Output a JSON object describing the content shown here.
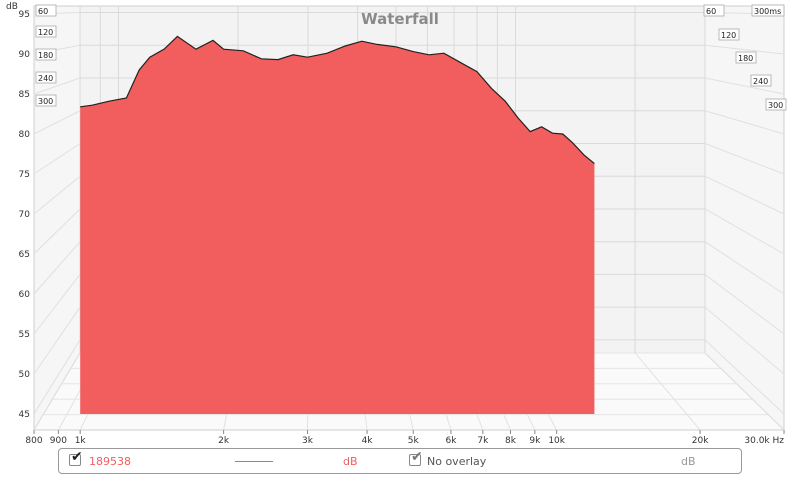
{
  "chart_data": {
    "type": "area",
    "title": "Waterfall",
    "ylabel": "dB",
    "xlabel": "Hz",
    "x_scale": "log",
    "xlim": [
      800,
      30000
    ],
    "ylim": [
      43,
      96
    ],
    "x_ticks": [
      {
        "value": 800,
        "label": "800"
      },
      {
        "value": 900,
        "label": "900"
      },
      {
        "value": 1000,
        "label": "1k"
      },
      {
        "value": 2000,
        "label": "2k"
      },
      {
        "value": 3000,
        "label": "3k"
      },
      {
        "value": 4000,
        "label": "4k"
      },
      {
        "value": 5000,
        "label": "5k"
      },
      {
        "value": 6000,
        "label": "6k"
      },
      {
        "value": 7000,
        "label": "7k"
      },
      {
        "value": 8000,
        "label": "8k"
      },
      {
        "value": 9000,
        "label": "9k"
      },
      {
        "value": 10000,
        "label": "10k"
      },
      {
        "value": 20000,
        "label": "20k"
      },
      {
        "value": 30000,
        "label": "30.0k Hz"
      }
    ],
    "y_ticks": [
      45,
      50,
      55,
      60,
      65,
      70,
      75,
      80,
      85,
      90,
      95
    ],
    "time_ticks_ms": [
      {
        "value": 60,
        "label": "60"
      },
      {
        "value": 120,
        "label": "120"
      },
      {
        "value": 180,
        "label": "180"
      },
      {
        "value": 240,
        "label": "240"
      },
      {
        "value": 300,
        "label": "300"
      }
    ],
    "time_ticks_right": [
      {
        "value": 60,
        "label": "60"
      },
      {
        "value": 120,
        "label": "120"
      },
      {
        "value": 180,
        "label": "180"
      },
      {
        "value": 240,
        "label": "240"
      },
      {
        "value": 300,
        "label": "300"
      }
    ],
    "time_unit_label": "300ms",
    "time_range_ms": [
      0,
      300
    ],
    "slice_count": 36,
    "fill_color": "#f25e5e",
    "line_color": "#222222",
    "series": [
      {
        "name": "189538",
        "description": "front (t=0) slice",
        "x": [
          1000,
          1060,
          1150,
          1250,
          1330,
          1400,
          1500,
          1600,
          1750,
          1900,
          2000,
          2200,
          2400,
          2600,
          2800,
          3000,
          3300,
          3600,
          3900,
          4200,
          4600,
          5000,
          5400,
          5800,
          6300,
          6800,
          7300,
          7800,
          8300,
          8800,
          9300,
          9800,
          10300,
          10800,
          11400,
          12000
        ],
        "y": [
          83.4,
          83.6,
          84.1,
          84.5,
          88.0,
          89.6,
          90.6,
          92.2,
          90.6,
          91.7,
          90.6,
          90.4,
          89.4,
          89.3,
          89.9,
          89.6,
          90.1,
          91.0,
          91.6,
          91.2,
          90.9,
          90.3,
          89.9,
          90.1,
          88.9,
          87.8,
          85.7,
          84.1,
          82.0,
          80.3,
          80.9,
          80.1,
          80.0,
          78.9,
          77.4,
          76.3
        ]
      }
    ]
  },
  "legend": {
    "series_checked": true,
    "series_name": "189538",
    "series_color": "#f25e5e",
    "series_unit": "dB",
    "overlay_checked": true,
    "overlay_label": "No overlay",
    "overlay_unit": "dB"
  }
}
